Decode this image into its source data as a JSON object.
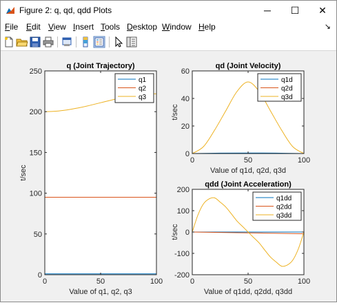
{
  "window": {
    "title": "Figure 2: q, qd, qdd Plots",
    "minimize": "─",
    "maximize": "☐",
    "close": "✕"
  },
  "menu": {
    "items": [
      "File",
      "Edit",
      "View",
      "Insert",
      "Tools",
      "Desktop",
      "Window",
      "Help"
    ],
    "dock_arrow": "↘"
  },
  "toolbar": {
    "icons": [
      "new-figure-icon",
      "open-file-icon",
      "save-icon",
      "print-icon",
      "print-preview-icon",
      "colorbar-icon",
      "legend-icon",
      "pointer-icon",
      "property-inspector-icon"
    ]
  },
  "chart_data": [
    {
      "type": "line",
      "title": "q (Joint Trajectory)",
      "xlabel": "Value of q1, q2, q3",
      "ylabel": "t/sec",
      "xlim": [
        0,
        100
      ],
      "ylim": [
        0,
        250
      ],
      "xticks": [
        0,
        50,
        100
      ],
      "yticks": [
        0,
        50,
        100,
        150,
        200,
        250
      ],
      "legend_position": "top-right",
      "series": [
        {
          "name": "q1",
          "color": "#0072bd",
          "x": [
            0,
            25,
            50,
            75,
            100
          ],
          "y": [
            1,
            1,
            1,
            1,
            1
          ]
        },
        {
          "name": "q2",
          "color": "#d95319",
          "x": [
            0,
            25,
            50,
            75,
            100
          ],
          "y": [
            95,
            95,
            95,
            95,
            95
          ]
        },
        {
          "name": "q3",
          "color": "#edb120",
          "x": [
            0,
            10,
            20,
            30,
            40,
            50,
            60,
            70,
            80,
            90,
            100
          ],
          "y": [
            200,
            200.6,
            202.2,
            204.6,
            207.6,
            211,
            214.4,
            217.4,
            219.8,
            221.4,
            222
          ]
        }
      ]
    },
    {
      "type": "line",
      "title": "qd (Joint Velocity)",
      "xlabel": "Value of q1d, q2d, q3d",
      "ylabel": "t/sec",
      "xlim": [
        0,
        100
      ],
      "ylim": [
        0,
        60
      ],
      "xticks": [
        0,
        50,
        100
      ],
      "yticks": [
        0,
        20,
        40,
        60
      ],
      "legend_position": "top-right",
      "series": [
        {
          "name": "q1d",
          "color": "#0072bd",
          "x": [
            0,
            25,
            50,
            75,
            100
          ],
          "y": [
            0,
            0.3,
            0.4,
            0.3,
            0
          ]
        },
        {
          "name": "q2d",
          "color": "#d95319",
          "x": [
            0,
            25,
            50,
            75,
            100
          ],
          "y": [
            0,
            0,
            0,
            0,
            0
          ]
        },
        {
          "name": "q3d",
          "color": "#edb120",
          "x": [
            0,
            10,
            20,
            30,
            40,
            50,
            60,
            70,
            80,
            90,
            100
          ],
          "y": [
            0,
            5,
            17,
            31,
            45,
            52,
            45,
            31,
            17,
            5,
            0
          ]
        }
      ]
    },
    {
      "type": "line",
      "title": "qdd (Joint Acceleration)",
      "xlabel": "Value of q1dd, q2dd, q3dd",
      "ylabel": "t/sec",
      "xlim": [
        0,
        100
      ],
      "ylim": [
        -200,
        200
      ],
      "xticks": [
        0,
        50,
        100
      ],
      "yticks": [
        -200,
        -100,
        0,
        100,
        200
      ],
      "legend_position": "top-right",
      "series": [
        {
          "name": "q1dd",
          "color": "#0072bd",
          "x": [
            0,
            25,
            50,
            75,
            100
          ],
          "y": [
            0,
            0,
            0,
            0,
            0
          ]
        },
        {
          "name": "q2dd",
          "color": "#d95319",
          "x": [
            0,
            25,
            50,
            75,
            100
          ],
          "y": [
            0,
            -2,
            -4,
            -6,
            -8
          ]
        },
        {
          "name": "q3dd",
          "color": "#edb120",
          "x": [
            0,
            5,
            10,
            15,
            20,
            25,
            30,
            35,
            40,
            45,
            50,
            55,
            60,
            65,
            70,
            75,
            80,
            85,
            90,
            95,
            100
          ],
          "y": [
            0,
            79,
            132,
            155,
            160,
            140,
            117,
            85,
            52,
            26,
            0,
            -26,
            -52,
            -85,
            -117,
            -140,
            -160,
            -155,
            -132,
            -79,
            0
          ]
        }
      ]
    }
  ]
}
